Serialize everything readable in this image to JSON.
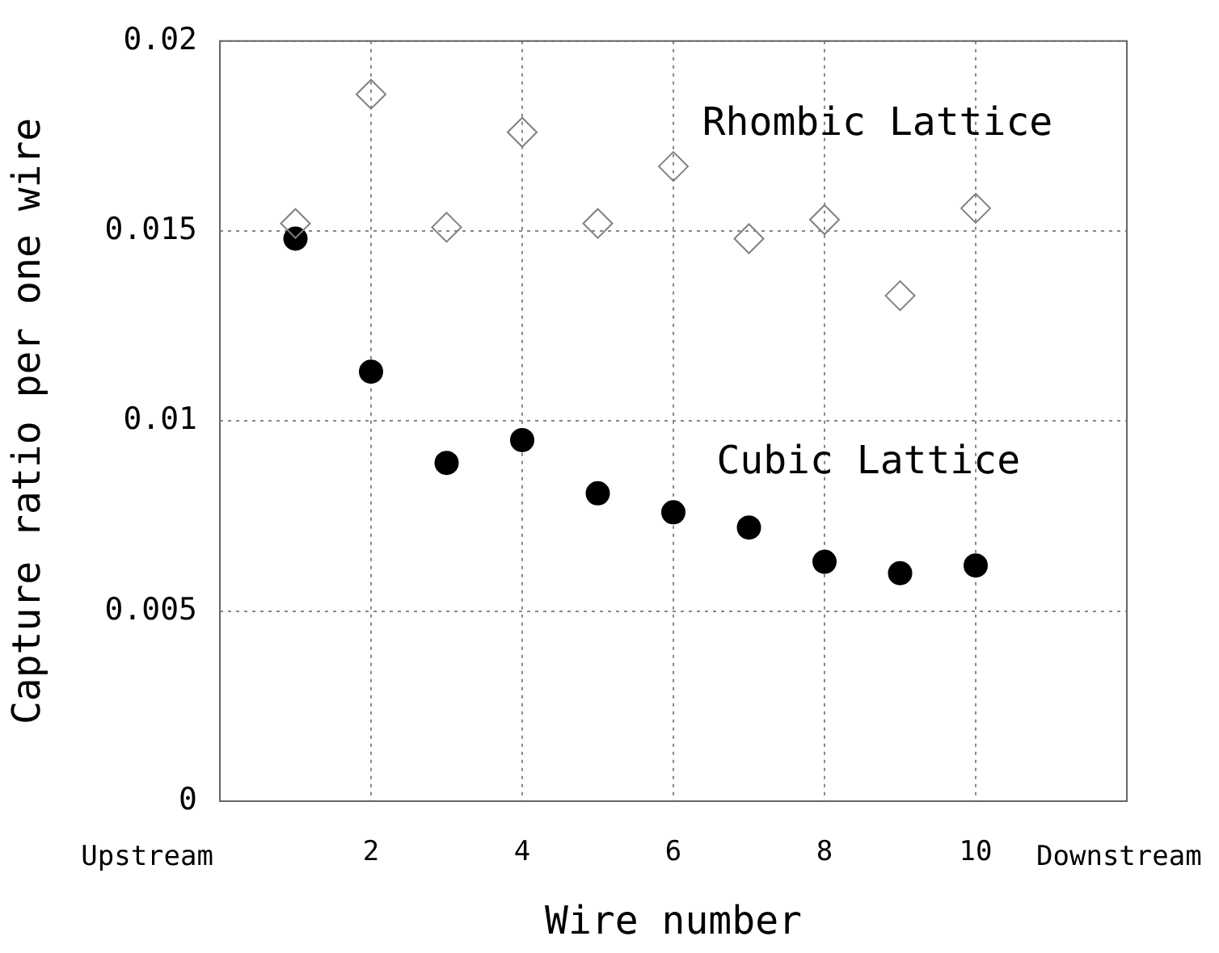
{
  "chart_data": {
    "type": "scatter",
    "xlabel": "Wire number",
    "ylabel": "Capture ratio per one wire",
    "x": [
      1,
      2,
      3,
      4,
      5,
      6,
      7,
      8,
      9,
      10
    ],
    "series": [
      {
        "name": "Rhombic Lattice",
        "color": "#808080",
        "marker": "diamond",
        "values": [
          0.0152,
          0.0186,
          0.0151,
          0.0176,
          0.0152,
          0.0167,
          0.0148,
          0.0153,
          0.0133,
          0.0156
        ]
      },
      {
        "name": "Cubic Lattice",
        "color": "#000000",
        "marker": "circle",
        "values": [
          0.0148,
          0.0113,
          0.0089,
          0.0095,
          0.0081,
          0.0076,
          0.0072,
          0.0063,
          0.006,
          0.0062
        ]
      }
    ],
    "xlim": [
      0,
      12
    ],
    "xticks": [
      2,
      4,
      6,
      8,
      10
    ],
    "ylim": [
      0,
      0.02
    ],
    "yticks": [
      0,
      0.005,
      0.01,
      0.015,
      0.02
    ],
    "grid": true,
    "legend": false,
    "annotations": [
      "Upstream",
      "Downstream"
    ]
  }
}
